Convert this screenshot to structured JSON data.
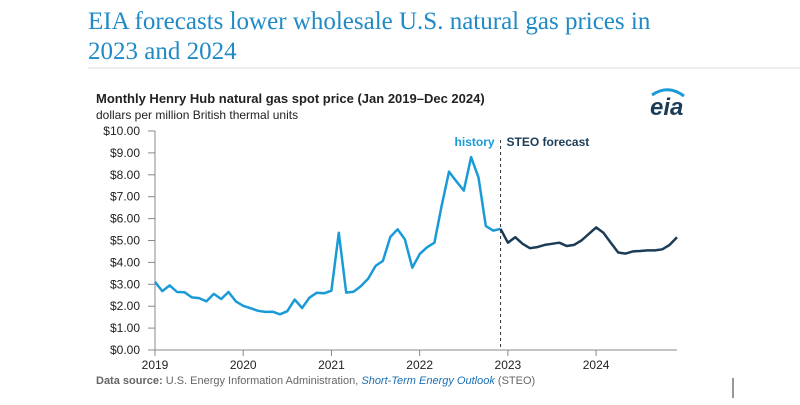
{
  "page_title": "EIA forecasts lower wholesale U.S. natural gas prices in 2023 and 2024",
  "logo": "eia",
  "source": {
    "label": "Data source:",
    "text": "U.S. Energy Information Administration,",
    "link": "Short-Term Energy Outlook",
    "suffix": "(STEO)"
  },
  "chart_data": {
    "type": "line",
    "title": "Monthly Henry Hub natural gas spot price (Jan 2019–Dec 2024)",
    "subtitle": "dollars per million British thermal units",
    "annotations": [
      {
        "text": "history",
        "color": "#1a9ad6"
      },
      {
        "text": "STEO forecast",
        "color": "#1b3c57"
      }
    ],
    "divider_x": 2022.917,
    "x": [
      2019,
      2019.083,
      2019.167,
      2019.25,
      2019.333,
      2019.417,
      2019.5,
      2019.583,
      2019.667,
      2019.75,
      2019.833,
      2019.917,
      2020,
      2020.083,
      2020.167,
      2020.25,
      2020.333,
      2020.417,
      2020.5,
      2020.583,
      2020.667,
      2020.75,
      2020.833,
      2020.917,
      2021,
      2021.083,
      2021.167,
      2021.25,
      2021.333,
      2021.417,
      2021.5,
      2021.583,
      2021.667,
      2021.75,
      2021.833,
      2021.917,
      2022,
      2022.083,
      2022.167,
      2022.25,
      2022.333,
      2022.417,
      2022.5,
      2022.583,
      2022.667,
      2022.75,
      2022.833,
      2022.917,
      2023,
      2023.083,
      2023.167,
      2023.25,
      2023.333,
      2023.417,
      2023.5,
      2023.583,
      2023.667,
      2023.75,
      2023.833,
      2023.917,
      2024,
      2024.083,
      2024.167,
      2024.25,
      2024.333,
      2024.417,
      2024.5,
      2024.583,
      2024.667,
      2024.75,
      2024.833,
      2024.917
    ],
    "series": [
      {
        "name": "history",
        "color": "#1a9ad6",
        "values": [
          3.11,
          2.69,
          2.95,
          2.65,
          2.64,
          2.4,
          2.37,
          2.22,
          2.56,
          2.33,
          2.65,
          2.22,
          2.02,
          1.91,
          1.79,
          1.74,
          1.75,
          1.63,
          1.77,
          2.3,
          1.92,
          2.39,
          2.61,
          2.59,
          2.71,
          5.35,
          2.62,
          2.66,
          2.91,
          3.26,
          3.84,
          4.07,
          5.16,
          5.51,
          5.05,
          3.76,
          4.38,
          4.69,
          4.9,
          6.6,
          8.14,
          7.7,
          7.28,
          8.81,
          7.88,
          5.66,
          5.45,
          5.53,
          null,
          null,
          null,
          null,
          null,
          null,
          null,
          null,
          null,
          null,
          null,
          null,
          null,
          null,
          null,
          null,
          null,
          null,
          null,
          null,
          null,
          null,
          null,
          null
        ]
      },
      {
        "name": "STEO forecast",
        "color": "#1b3c57",
        "values": [
          null,
          null,
          null,
          null,
          null,
          null,
          null,
          null,
          null,
          null,
          null,
          null,
          null,
          null,
          null,
          null,
          null,
          null,
          null,
          null,
          null,
          null,
          null,
          null,
          null,
          null,
          null,
          null,
          null,
          null,
          null,
          null,
          null,
          null,
          null,
          null,
          null,
          null,
          null,
          null,
          null,
          null,
          null,
          null,
          null,
          null,
          null,
          5.53,
          4.9,
          5.15,
          4.85,
          4.65,
          4.7,
          4.8,
          4.85,
          4.9,
          4.75,
          4.8,
          5.0,
          5.3,
          5.6,
          5.35,
          4.9,
          4.45,
          4.4,
          4.5,
          4.52,
          4.55,
          4.55,
          4.6,
          4.8,
          5.15
        ]
      }
    ],
    "xlim": [
      2019,
      2024.917
    ],
    "xticks": [
      2019,
      2020,
      2021,
      2022,
      2023,
      2024
    ],
    "ylim": [
      0,
      10
    ],
    "yticks": [
      {
        "value": 0,
        "label": "$0.00"
      },
      {
        "value": 1,
        "label": "$1.00"
      },
      {
        "value": 2,
        "label": "$2.00"
      },
      {
        "value": 3,
        "label": "$3.00"
      },
      {
        "value": 4,
        "label": "$4.00"
      },
      {
        "value": 5,
        "label": "$5.00"
      },
      {
        "value": 6,
        "label": "$6.00"
      },
      {
        "value": 7,
        "label": "$7.00"
      },
      {
        "value": 8,
        "label": "$8.00"
      },
      {
        "value": 9,
        "label": "$9.00"
      },
      {
        "value": 10,
        "label": "$10.00"
      }
    ],
    "grid": false
  }
}
